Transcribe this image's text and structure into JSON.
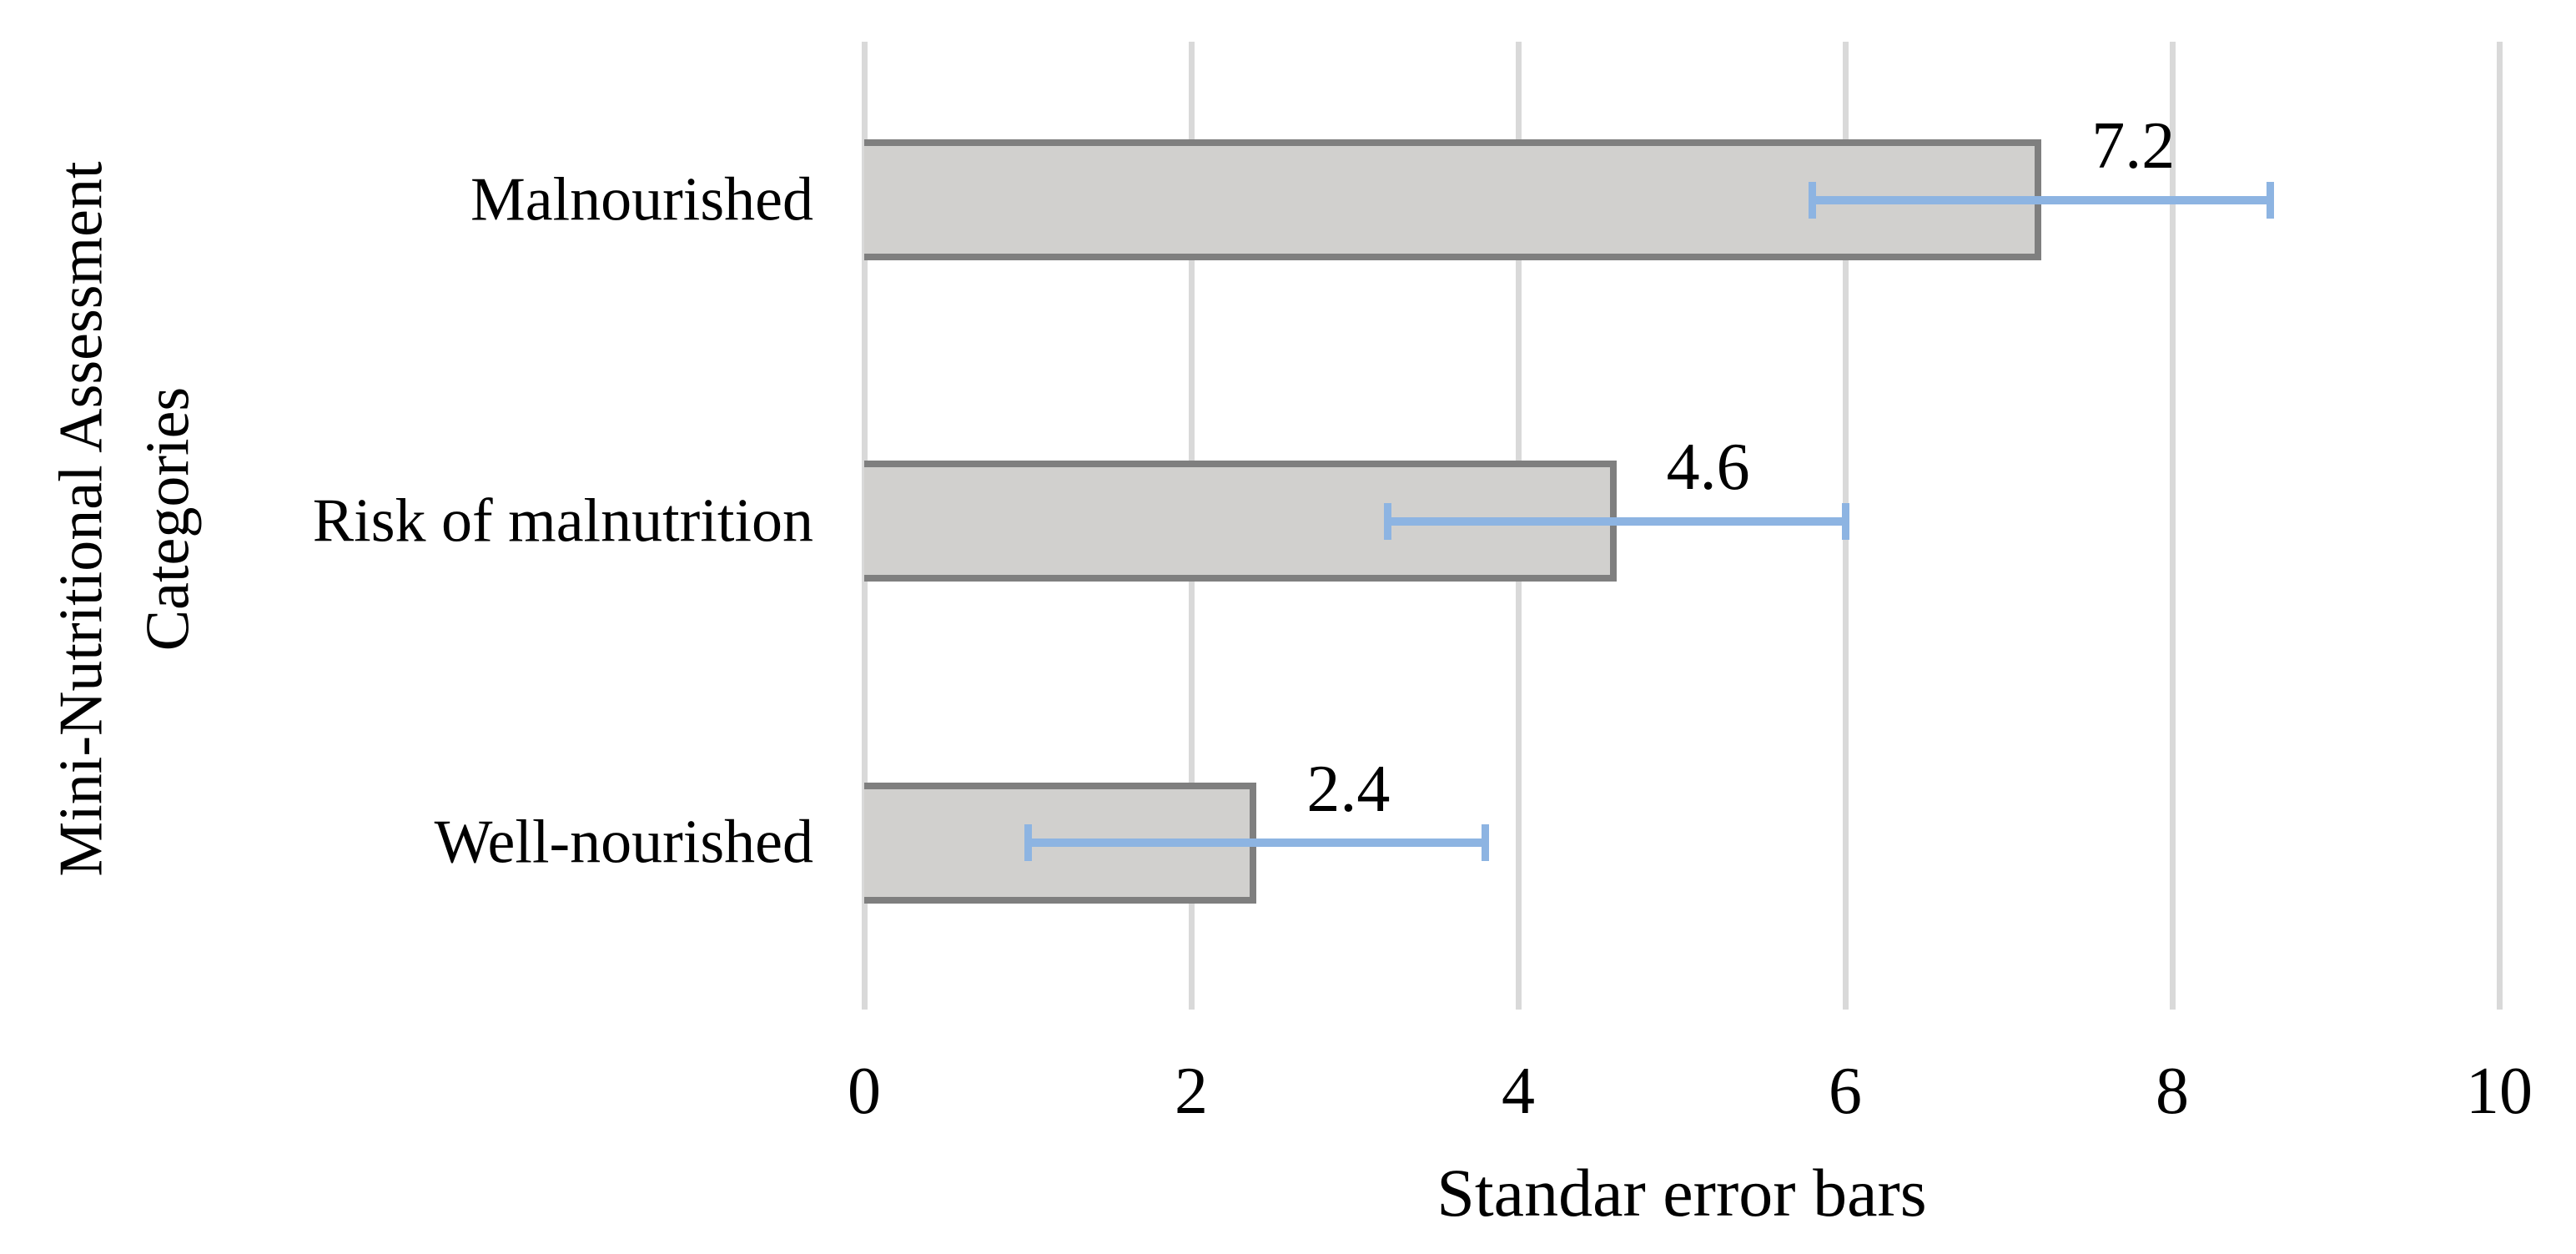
{
  "figure": {
    "background": "#ffffff"
  },
  "chart_data": {
    "type": "bar",
    "orientation": "horizontal",
    "title": "",
    "categories": [
      "Malnourished",
      "Risk of malnutrition",
      "Well-nourished"
    ],
    "values": [
      7.2,
      4.6,
      2.4
    ],
    "error_bars_minus": [
      1.4,
      1.4,
      1.4
    ],
    "error_bars_plus": [
      1.4,
      1.4,
      1.4
    ],
    "data_labels": [
      "7.2",
      "4.6",
      "2.4"
    ],
    "xlabel": "Standar error bars",
    "ylabel_line1": "Mini-Nutritional Assessment",
    "ylabel_line2": "Categories",
    "x_ticks": [
      "0",
      "2",
      "4",
      "6",
      "8",
      "10"
    ],
    "x_tick_values": [
      0,
      2,
      4,
      6,
      8,
      10
    ],
    "xlim": [
      0,
      10
    ],
    "grid": "vertical-gridlines-on",
    "legend": "none",
    "colors": {
      "bar_fill": "#D1D0CE",
      "bar_border": "#7F7F7F",
      "error_bar": "#8DB4E2",
      "gridline": "#D9D9D9",
      "text": "#000000"
    }
  }
}
